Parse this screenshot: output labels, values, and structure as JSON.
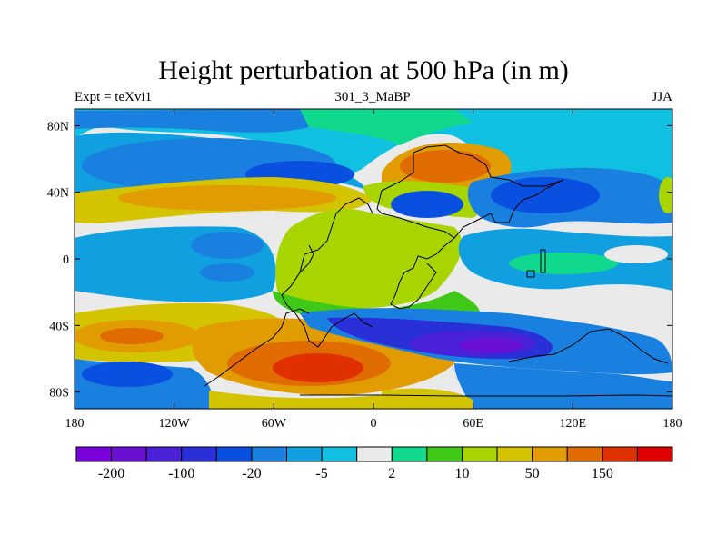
{
  "title": "Height perturbation at 500 hPa (in m)",
  "subtitle_left": "Expt = teXvi1",
  "subtitle_center": "301_3_MaBP",
  "subtitle_right": "JJA",
  "map": {
    "projection": "cylindrical equidistant",
    "lon_range": [
      -180,
      180
    ],
    "lat_range": [
      -90,
      90
    ],
    "field": "500 hPa geopotential height perturbation",
    "x_ticks": [
      {
        "value": -180,
        "label": "180"
      },
      {
        "value": -120,
        "label": "120W"
      },
      {
        "value": -60,
        "label": "60W"
      },
      {
        "value": 0,
        "label": "0"
      },
      {
        "value": 60,
        "label": "60E"
      },
      {
        "value": 120,
        "label": "120E"
      },
      {
        "value": 180,
        "label": "180"
      }
    ],
    "y_ticks": [
      {
        "value": 80,
        "label": "80N"
      },
      {
        "value": 40,
        "label": "40N"
      },
      {
        "value": 0,
        "label": "0"
      },
      {
        "value": -40,
        "label": "40S"
      },
      {
        "value": -80,
        "label": "80S"
      }
    ]
  },
  "colorbar": {
    "colors": [
      "#7a00dc",
      "#6a10d4",
      "#4a20d8",
      "#2a30d8",
      "#0a50e0",
      "#1a80e0",
      "#10a0e0",
      "#10c0e0",
      "#eaeaea",
      "#10d88c",
      "#40c818",
      "#a8d400",
      "#d4c400",
      "#e09c00",
      "#e06c00",
      "#e03000",
      "#dc0000"
    ],
    "labels": [
      {
        "index": 1,
        "text": "-200"
      },
      {
        "index": 3,
        "text": "-100"
      },
      {
        "index": 5,
        "text": "-20"
      },
      {
        "index": 7,
        "text": "-5"
      },
      {
        "index": 9,
        "text": "2"
      },
      {
        "index": 11,
        "text": "10"
      },
      {
        "index": 13,
        "text": "50"
      },
      {
        "index": 15,
        "text": "150"
      }
    ]
  }
}
